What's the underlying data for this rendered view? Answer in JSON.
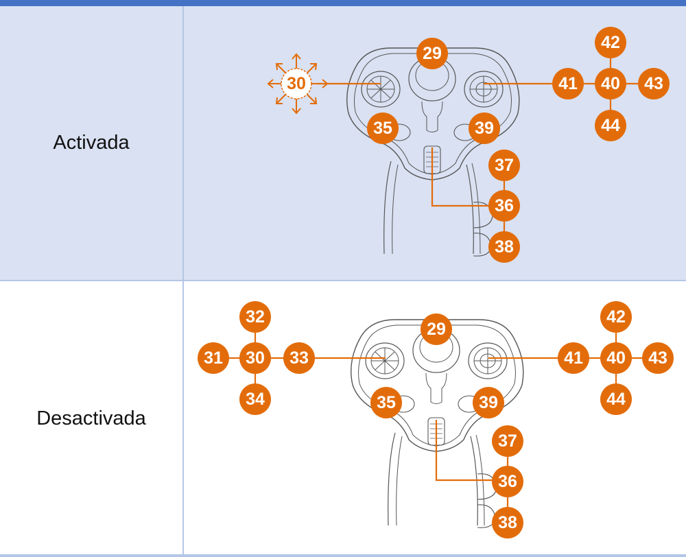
{
  "rows": [
    {
      "label": "Activada"
    },
    {
      "label": "Desactivada"
    }
  ],
  "colors": {
    "header": "#4472c4",
    "row_highlight": "#d9e1f2",
    "accent": "#e36c0a",
    "line_art": "#555555",
    "grid": "#b4c6e7"
  },
  "callouts_top": {
    "c29": "29",
    "c30": "30",
    "c35": "35",
    "c39": "39",
    "c36": "36",
    "c37": "37",
    "c38": "38",
    "c40": "40",
    "c41": "41",
    "c42": "42",
    "c43": "43",
    "c44": "44"
  },
  "callouts_bottom": {
    "c29": "29",
    "c30": "30",
    "c31": "31",
    "c32": "32",
    "c33": "33",
    "c34": "34",
    "c35": "35",
    "c39": "39",
    "c36": "36",
    "c37": "37",
    "c38": "38",
    "c40": "40",
    "c41": "41",
    "c42": "42",
    "c43": "43",
    "c44": "44"
  },
  "icons": {
    "joystick": "joystick-outline-icon",
    "direction_arrows": "eight-way-arrows-icon"
  }
}
